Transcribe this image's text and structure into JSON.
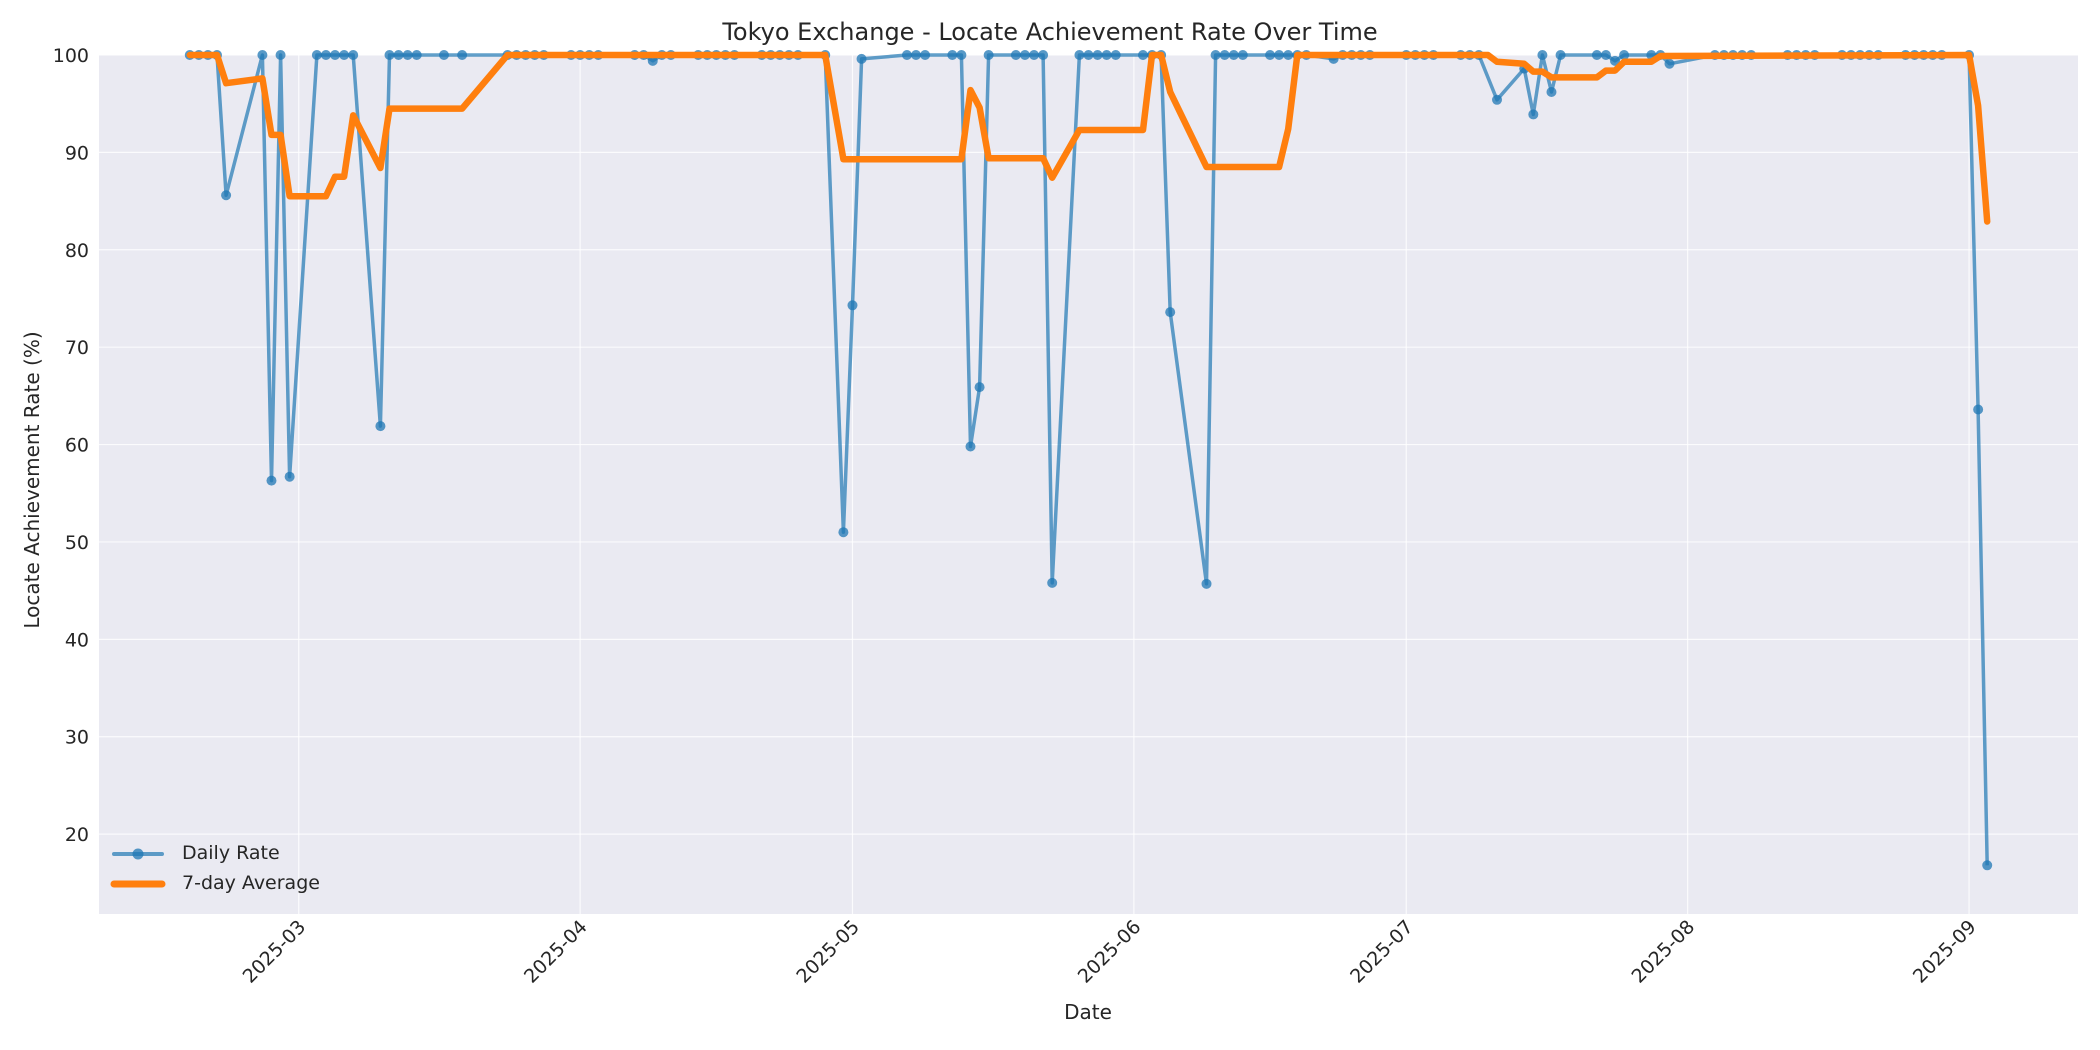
{
  "chart_data": {
    "type": "line",
    "title": "Tokyo Exchange - Locate Achievement Rate Over Time",
    "xlabel": "Date",
    "ylabel": "Locate Achievement Rate (%)",
    "ylim": [
      11.8,
      100
    ],
    "xlim": [
      "2025-02-07",
      "2025-09-13"
    ],
    "yticks": [
      20,
      30,
      40,
      50,
      60,
      70,
      80,
      90,
      100
    ],
    "xticks": [
      "2025-03",
      "2025-04",
      "2025-05",
      "2025-06",
      "2025-07",
      "2025-08",
      "2025-09"
    ],
    "xtick_dates": [
      "2025-03-01",
      "2025-04-01",
      "2025-05-01",
      "2025-06-01",
      "2025-07-01",
      "2025-08-01",
      "2025-09-01"
    ],
    "grid": true,
    "legend_position": "lower left",
    "colors": {
      "daily": "#1f77b4",
      "avg": "#ff7f0e",
      "plot_bg": "#eaeaf2",
      "grid": "#ffffff"
    },
    "series": [
      {
        "name": "Daily Rate",
        "style": "line-with-markers",
        "points": [
          [
            "2025-02-17",
            100
          ],
          [
            "2025-02-18",
            100
          ],
          [
            "2025-02-19",
            100
          ],
          [
            "2025-02-20",
            100
          ],
          [
            "2025-02-21",
            85.6
          ],
          [
            "2025-02-25",
            100
          ],
          [
            "2025-02-26",
            56.3
          ],
          [
            "2025-02-27",
            100
          ],
          [
            "2025-02-28",
            56.7
          ],
          [
            "2025-03-03",
            100
          ],
          [
            "2025-03-04",
            100
          ],
          [
            "2025-03-05",
            100
          ],
          [
            "2025-03-06",
            100
          ],
          [
            "2025-03-07",
            100
          ],
          [
            "2025-03-10",
            61.9
          ],
          [
            "2025-03-11",
            100
          ],
          [
            "2025-03-12",
            100
          ],
          [
            "2025-03-13",
            100
          ],
          [
            "2025-03-14",
            100
          ],
          [
            "2025-03-17",
            100
          ],
          [
            "2025-03-19",
            100
          ],
          [
            "2025-03-24",
            100
          ],
          [
            "2025-03-25",
            100
          ],
          [
            "2025-03-26",
            100
          ],
          [
            "2025-03-27",
            100
          ],
          [
            "2025-03-28",
            100
          ],
          [
            "2025-03-31",
            100
          ],
          [
            "2025-04-01",
            100
          ],
          [
            "2025-04-02",
            100
          ],
          [
            "2025-04-03",
            100
          ],
          [
            "2025-04-07",
            100
          ],
          [
            "2025-04-08",
            100
          ],
          [
            "2025-04-09",
            99.4
          ],
          [
            "2025-04-10",
            100
          ],
          [
            "2025-04-11",
            100
          ],
          [
            "2025-04-14",
            100
          ],
          [
            "2025-04-15",
            100
          ],
          [
            "2025-04-16",
            100
          ],
          [
            "2025-04-17",
            100
          ],
          [
            "2025-04-18",
            100
          ],
          [
            "2025-04-21",
            100
          ],
          [
            "2025-04-22",
            100
          ],
          [
            "2025-04-23",
            100
          ],
          [
            "2025-04-24",
            100
          ],
          [
            "2025-04-25",
            100
          ],
          [
            "2025-04-28",
            100
          ],
          [
            "2025-04-30",
            51.0
          ],
          [
            "2025-05-01",
            74.3
          ],
          [
            "2025-05-02",
            99.6
          ],
          [
            "2025-05-07",
            100
          ],
          [
            "2025-05-08",
            100
          ],
          [
            "2025-05-09",
            100
          ],
          [
            "2025-05-12",
            100
          ],
          [
            "2025-05-13",
            100
          ],
          [
            "2025-05-14",
            59.8
          ],
          [
            "2025-05-15",
            65.9
          ],
          [
            "2025-05-16",
            100
          ],
          [
            "2025-05-19",
            100
          ],
          [
            "2025-05-20",
            100
          ],
          [
            "2025-05-21",
            100
          ],
          [
            "2025-05-22",
            100
          ],
          [
            "2025-05-23",
            45.8
          ],
          [
            "2025-05-26",
            100
          ],
          [
            "2025-05-27",
            100
          ],
          [
            "2025-05-28",
            100
          ],
          [
            "2025-05-29",
            100
          ],
          [
            "2025-05-30",
            100
          ],
          [
            "2025-06-02",
            100
          ],
          [
            "2025-06-03",
            100
          ],
          [
            "2025-06-04",
            100
          ],
          [
            "2025-06-05",
            73.6
          ],
          [
            "2025-06-09",
            45.7
          ],
          [
            "2025-06-10",
            100
          ],
          [
            "2025-06-11",
            100
          ],
          [
            "2025-06-12",
            100
          ],
          [
            "2025-06-13",
            100
          ],
          [
            "2025-06-16",
            100
          ],
          [
            "2025-06-17",
            100
          ],
          [
            "2025-06-18",
            100
          ],
          [
            "2025-06-19",
            100
          ],
          [
            "2025-06-20",
            100
          ],
          [
            "2025-06-23",
            99.6
          ],
          [
            "2025-06-24",
            100
          ],
          [
            "2025-06-25",
            100
          ],
          [
            "2025-06-26",
            100
          ],
          [
            "2025-06-27",
            100
          ],
          [
            "2025-07-01",
            100
          ],
          [
            "2025-07-02",
            100
          ],
          [
            "2025-07-03",
            100
          ],
          [
            "2025-07-04",
            100
          ],
          [
            "2025-07-07",
            100
          ],
          [
            "2025-07-08",
            100
          ],
          [
            "2025-07-09",
            100
          ],
          [
            "2025-07-11",
            95.4
          ],
          [
            "2025-07-14",
            98.6
          ],
          [
            "2025-07-15",
            93.9
          ],
          [
            "2025-07-16",
            100
          ],
          [
            "2025-07-17",
            96.2
          ],
          [
            "2025-07-18",
            100
          ],
          [
            "2025-07-22",
            100
          ],
          [
            "2025-07-23",
            100
          ],
          [
            "2025-07-24",
            99.4
          ],
          [
            "2025-07-25",
            100
          ],
          [
            "2025-07-28",
            100
          ],
          [
            "2025-07-29",
            100
          ],
          [
            "2025-07-30",
            99.1
          ],
          [
            "2025-08-04",
            100
          ],
          [
            "2025-08-05",
            100
          ],
          [
            "2025-08-06",
            100
          ],
          [
            "2025-08-07",
            100
          ],
          [
            "2025-08-08",
            100
          ],
          [
            "2025-08-12",
            100
          ],
          [
            "2025-08-13",
            100
          ],
          [
            "2025-08-14",
            100
          ],
          [
            "2025-08-15",
            100
          ],
          [
            "2025-08-18",
            100
          ],
          [
            "2025-08-19",
            100
          ],
          [
            "2025-08-20",
            100
          ],
          [
            "2025-08-21",
            100
          ],
          [
            "2025-08-22",
            100
          ],
          [
            "2025-08-25",
            100
          ],
          [
            "2025-08-26",
            100
          ],
          [
            "2025-08-27",
            100
          ],
          [
            "2025-08-28",
            100
          ],
          [
            "2025-08-29",
            100
          ],
          [
            "2025-09-01",
            100
          ],
          [
            "2025-09-02",
            63.6
          ],
          [
            "2025-09-03",
            16.8
          ]
        ]
      },
      {
        "name": "7-day Average",
        "style": "thick-line",
        "points": [
          [
            "2025-02-17",
            100
          ],
          [
            "2025-02-20",
            100
          ],
          [
            "2025-02-21",
            97.1
          ],
          [
            "2025-02-25",
            97.6
          ],
          [
            "2025-02-26",
            91.8
          ],
          [
            "2025-02-27",
            91.8
          ],
          [
            "2025-02-28",
            85.5
          ],
          [
            "2025-03-04",
            85.5
          ],
          [
            "2025-03-05",
            87.5
          ],
          [
            "2025-03-06",
            87.5
          ],
          [
            "2025-03-07",
            93.8
          ],
          [
            "2025-03-10",
            88.4
          ],
          [
            "2025-03-11",
            94.5
          ],
          [
            "2025-03-19",
            94.5
          ],
          [
            "2025-03-24",
            100
          ],
          [
            "2025-04-28",
            100
          ],
          [
            "2025-04-30",
            89.3
          ],
          [
            "2025-05-13",
            89.3
          ],
          [
            "2025-05-14",
            96.4
          ],
          [
            "2025-05-15",
            94.6
          ],
          [
            "2025-05-16",
            89.4
          ],
          [
            "2025-05-22",
            89.4
          ],
          [
            "2025-05-23",
            87.4
          ],
          [
            "2025-05-26",
            92.3
          ],
          [
            "2025-06-02",
            92.3
          ],
          [
            "2025-06-03",
            100
          ],
          [
            "2025-06-04",
            100
          ],
          [
            "2025-06-05",
            96.2
          ],
          [
            "2025-06-09",
            88.5
          ],
          [
            "2025-06-17",
            88.5
          ],
          [
            "2025-06-18",
            92.4
          ],
          [
            "2025-06-19",
            100
          ],
          [
            "2025-07-10",
            100
          ],
          [
            "2025-07-11",
            99.3
          ],
          [
            "2025-07-14",
            99.1
          ],
          [
            "2025-07-15",
            98.3
          ],
          [
            "2025-07-16",
            98.3
          ],
          [
            "2025-07-17",
            97.7
          ],
          [
            "2025-07-22",
            97.7
          ],
          [
            "2025-07-23",
            98.4
          ],
          [
            "2025-07-24",
            98.4
          ],
          [
            "2025-07-25",
            99.3
          ],
          [
            "2025-07-28",
            99.3
          ],
          [
            "2025-07-29",
            99.9
          ],
          [
            "2025-09-01",
            100
          ],
          [
            "2025-09-02",
            94.8
          ],
          [
            "2025-09-03",
            82.9
          ]
        ]
      }
    ]
  },
  "legend": {
    "items": [
      {
        "label": "Daily Rate",
        "icon": "line-with-circle-marker"
      },
      {
        "label": "7-day Average",
        "icon": "thick-line"
      }
    ]
  }
}
